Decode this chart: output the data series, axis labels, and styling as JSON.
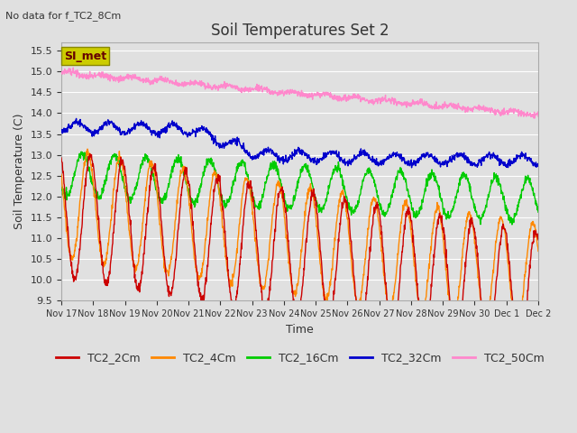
{
  "title": "Soil Temperatures Set 2",
  "note": "No data for f_TC2_8Cm",
  "ylabel": "Soil Temperature (C)",
  "xlabel": "Time",
  "ylim": [
    9.5,
    15.7
  ],
  "xlim": [
    0,
    360
  ],
  "background_color": "#e0e0e0",
  "plot_bg_color": "#e0e0e0",
  "grid_color": "#ffffff",
  "tick_labels": [
    "Nov 17",
    "Nov 18",
    "Nov 19",
    "Nov 20",
    "Nov 21",
    "Nov 22",
    "Nov 23",
    "Nov 24",
    "Nov 25",
    "Nov 26",
    "Nov 27",
    "Nov 28",
    "Nov 29",
    "Nov 30",
    "Dec 1",
    "Dec 2"
  ],
  "tick_positions": [
    0,
    24,
    48,
    72,
    96,
    120,
    144,
    168,
    192,
    216,
    240,
    264,
    288,
    312,
    336,
    360
  ],
  "series": {
    "TC2_2Cm": {
      "color": "#cc0000",
      "lw": 1.0
    },
    "TC2_4Cm": {
      "color": "#ff8800",
      "lw": 1.0
    },
    "TC2_16Cm": {
      "color": "#00cc00",
      "lw": 1.0
    },
    "TC2_32Cm": {
      "color": "#0000cc",
      "lw": 1.0
    },
    "TC2_50Cm": {
      "color": "#ff88cc",
      "lw": 1.0
    }
  },
  "legend_box_color": "#cccc00",
  "legend_box_text": "SI_met",
  "legend_box_text_color": "#660000"
}
